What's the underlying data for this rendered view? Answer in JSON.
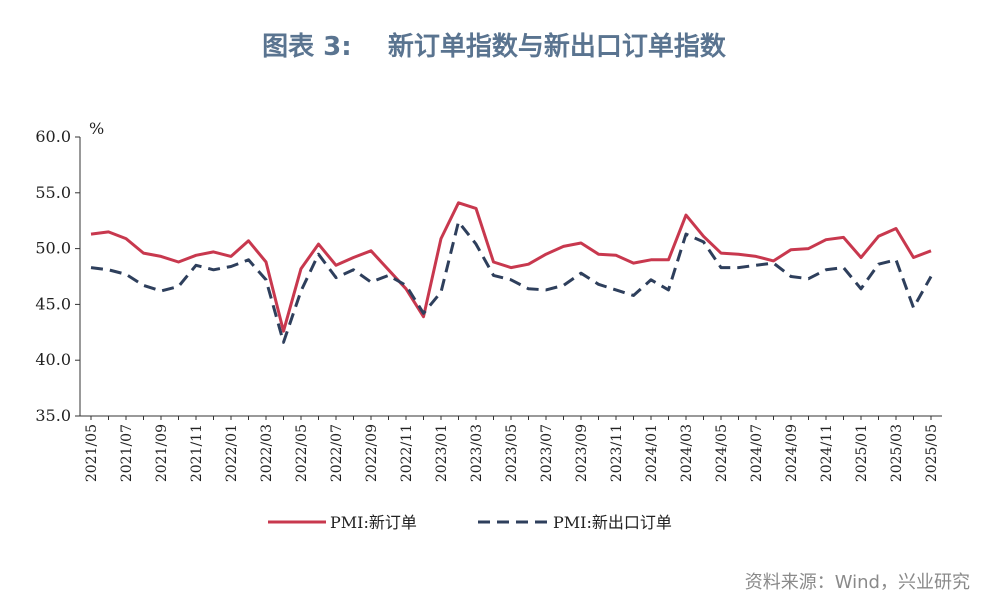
{
  "figure": {
    "title": "图表 3:    新订单指数与新出口订单指数",
    "source": "资料来源：Wind，兴业研究"
  },
  "colors": {
    "new_orders": "#c8384e",
    "export_orders": "#2e3f5c",
    "axis": "#333333"
  },
  "chart_data": {
    "type": "line",
    "title": "图表 3:    新订单指数与新出口订单指数",
    "ylabel": "%",
    "xlabel": "",
    "ylim": [
      35,
      60
    ],
    "yticks": [
      "35.0",
      "40.0",
      "45.0",
      "50.0",
      "55.0",
      "60.0"
    ],
    "grid": false,
    "legend": "bottom",
    "x": [
      "2021/05",
      "2021/06",
      "2021/07",
      "2021/08",
      "2021/09",
      "2021/10",
      "2021/11",
      "2021/12",
      "2022/01",
      "2022/02",
      "2022/03",
      "2022/04",
      "2022/05",
      "2022/06",
      "2022/07",
      "2022/08",
      "2022/09",
      "2022/10",
      "2022/11",
      "2022/12",
      "2023/01",
      "2023/02",
      "2023/03",
      "2023/04",
      "2023/05",
      "2023/06",
      "2023/07",
      "2023/08",
      "2023/09",
      "2023/10",
      "2023/11",
      "2023/12",
      "2024/01",
      "2024/02",
      "2024/03",
      "2024/04",
      "2024/05",
      "2024/06",
      "2024/07",
      "2024/08",
      "2024/09",
      "2024/10",
      "2024/11",
      "2024/12",
      "2025/01",
      "2025/02",
      "2025/03",
      "2025/04",
      "2025/05"
    ],
    "xtick_labels": [
      "2021/05",
      "2021/07",
      "2021/09",
      "2021/11",
      "2022/01",
      "2022/03",
      "2022/05",
      "2022/07",
      "2022/09",
      "2022/11",
      "2023/01",
      "2023/03",
      "2023/05",
      "2023/07",
      "2023/09",
      "2023/11",
      "2024/01",
      "2024/03",
      "2024/05",
      "2024/07",
      "2024/09",
      "2024/11",
      "2025/01",
      "2025/03",
      "2025/05"
    ],
    "series": [
      {
        "name": "PMI:新订单",
        "style": "solid",
        "values": [
          51.3,
          51.5,
          50.9,
          49.6,
          49.3,
          48.8,
          49.4,
          49.7,
          49.3,
          50.7,
          48.8,
          42.6,
          48.2,
          50.4,
          48.5,
          49.2,
          49.8,
          48.1,
          46.4,
          43.9,
          50.9,
          54.1,
          53.6,
          48.8,
          48.3,
          48.6,
          49.5,
          50.2,
          50.5,
          49.5,
          49.4,
          48.7,
          49.0,
          49.0,
          53.0,
          51.1,
          49.6,
          49.5,
          49.3,
          48.9,
          49.9,
          50.0,
          50.8,
          51.0,
          49.2,
          51.1,
          51.8,
          49.2,
          49.8
        ]
      },
      {
        "name": "PMI:新出口订单",
        "style": "dashed",
        "values": [
          48.3,
          48.1,
          47.7,
          46.7,
          46.2,
          46.6,
          48.5,
          48.1,
          48.4,
          49.0,
          47.2,
          41.6,
          46.2,
          49.5,
          47.4,
          48.1,
          47.0,
          47.6,
          46.7,
          44.2,
          46.1,
          52.4,
          50.4,
          47.6,
          47.2,
          46.4,
          46.3,
          46.7,
          47.8,
          46.8,
          46.3,
          45.8,
          47.2,
          46.3,
          51.3,
          50.6,
          48.3,
          48.3,
          48.5,
          48.7,
          47.5,
          47.3,
          48.1,
          48.3,
          46.4,
          48.6,
          49.0,
          44.7,
          47.5
        ]
      }
    ]
  }
}
